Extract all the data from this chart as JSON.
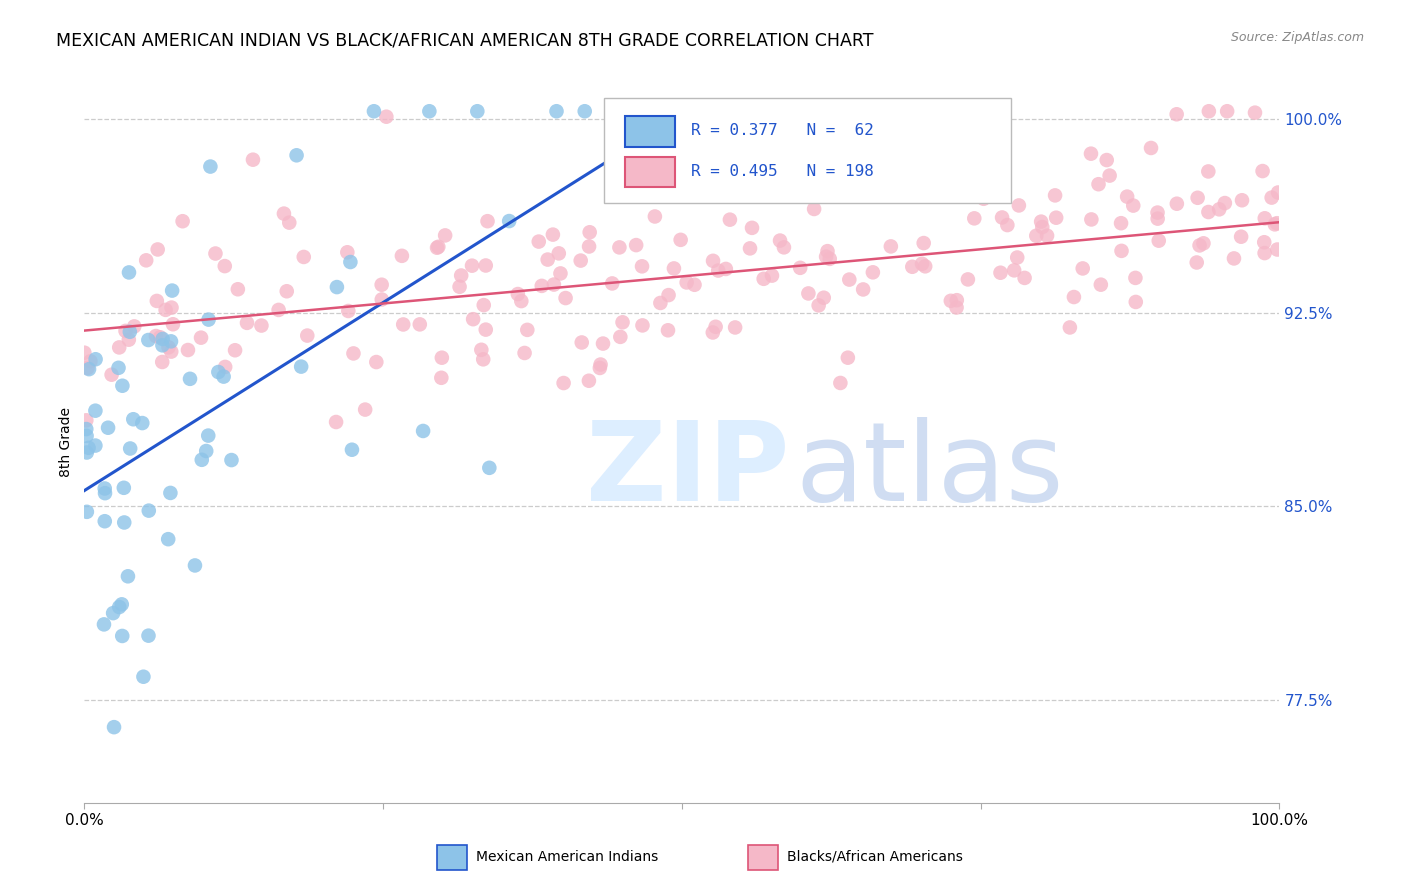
{
  "title": "MEXICAN AMERICAN INDIAN VS BLACK/AFRICAN AMERICAN 8TH GRADE CORRELATION CHART",
  "source": "Source: ZipAtlas.com",
  "ylabel": "8th Grade",
  "x_range": [
    0.0,
    1.0
  ],
  "y_range": [
    0.735,
    1.015
  ],
  "y_ticks": [
    0.775,
    0.85,
    0.925,
    1.0
  ],
  "y_tick_labels": [
    "77.5%",
    "85.0%",
    "92.5%",
    "100.0%"
  ],
  "blue_color": "#8dc3e8",
  "blue_line_color": "#2255cc",
  "pink_color": "#f5b8c8",
  "pink_line_color": "#dd5577",
  "legend_text_color": "#2255cc",
  "background_color": "#ffffff",
  "grid_color": "#cccccc",
  "blue_N": 62,
  "pink_N": 198,
  "blue_line_x0": 0.0,
  "blue_line_y0": 0.856,
  "blue_line_x1": 0.47,
  "blue_line_y1": 0.993,
  "pink_line_x0": 0.0,
  "pink_line_y0": 0.918,
  "pink_line_x1": 1.0,
  "pink_line_y1": 0.96
}
